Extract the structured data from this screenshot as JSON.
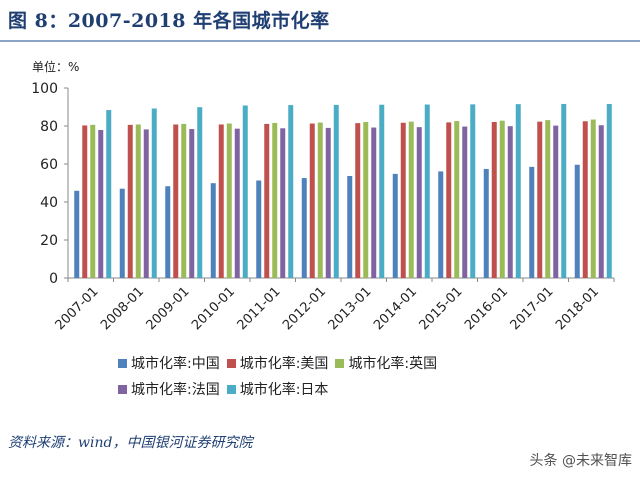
{
  "title": "图 8：2007-2018 年各国城市化率",
  "source": "资料来源：wind，中国银河证券研究院",
  "watermark": "头条 @未来智库",
  "chart_data": {
    "type": "bar",
    "unit_label": "单位：%",
    "categories": [
      "2007-01",
      "2008-01",
      "2009-01",
      "2010-01",
      "2011-01",
      "2012-01",
      "2013-01",
      "2014-01",
      "2015-01",
      "2016-01",
      "2017-01",
      "2018-01"
    ],
    "ylim": [
      0,
      100
    ],
    "yticks": [
      0,
      20,
      40,
      60,
      80,
      100
    ],
    "grid": false,
    "legend_position": "bottom",
    "series": [
      {
        "name": "城市化率:中国",
        "color": "#4f81bd",
        "values": [
          45.9,
          47.0,
          48.3,
          49.9,
          51.3,
          52.6,
          53.7,
          54.8,
          56.1,
          57.4,
          58.5,
          59.6
        ]
      },
      {
        "name": "城市化率:美国",
        "color": "#c0504d",
        "values": [
          80.3,
          80.6,
          80.8,
          80.8,
          81.1,
          81.3,
          81.5,
          81.7,
          81.9,
          82.1,
          82.3,
          82.5
        ]
      },
      {
        "name": "城市化率:英国",
        "color": "#9bbb59",
        "values": [
          80.6,
          80.8,
          81.1,
          81.3,
          81.6,
          81.8,
          82.1,
          82.3,
          82.6,
          82.8,
          83.1,
          83.4
        ]
      },
      {
        "name": "城市化率:法国",
        "color": "#8064a2",
        "values": [
          77.9,
          78.2,
          78.4,
          78.6,
          78.8,
          79.0,
          79.2,
          79.4,
          79.7,
          79.9,
          80.2,
          80.4
        ]
      },
      {
        "name": "城市化率:日本",
        "color": "#4bacc6",
        "values": [
          88.4,
          89.2,
          89.9,
          90.8,
          91.0,
          91.1,
          91.2,
          91.3,
          91.4,
          91.5,
          91.6,
          91.6
        ]
      }
    ],
    "legend_rows": [
      [
        0,
        1,
        2
      ],
      [
        3,
        4
      ]
    ]
  }
}
